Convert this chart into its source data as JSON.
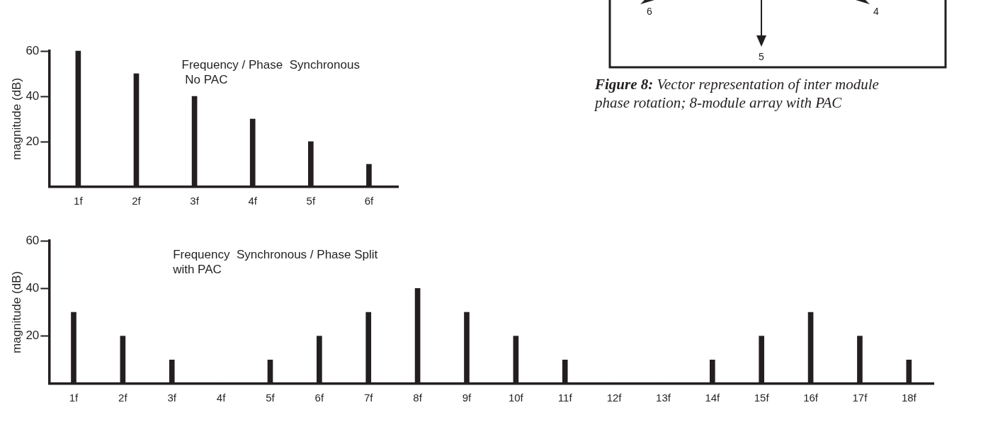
{
  "chart_data": [
    {
      "type": "bar",
      "ylabel": "magnitude (dB)",
      "annotations": [
        "Frequency / Phase  Synchronous",
        " No PAC"
      ],
      "categories": [
        "1f",
        "2f",
        "3f",
        "4f",
        "5f",
        "6f"
      ],
      "series": [
        {
          "color": "#231f20",
          "values": [
            60,
            50,
            40,
            30,
            20,
            10
          ]
        }
      ],
      "ylim": [
        0,
        60
      ],
      "yticks": [
        20,
        40,
        60
      ],
      "grid": false,
      "legend": false
    },
    {
      "type": "bar",
      "ylabel": "magnitude (dB)",
      "annotations": [
        "Frequency  Synchronous / Phase Split",
        "with PAC"
      ],
      "categories": [
        "1f",
        "2f",
        "3f",
        "4f",
        "5f",
        "6f",
        "7f",
        "8f",
        "9f",
        "10f",
        "11f",
        "12f",
        "13f",
        "14f",
        "15f",
        "16f",
        "17f",
        "18f"
      ],
      "series": [
        {
          "color": "#231f20",
          "values": [
            30,
            20,
            10,
            0,
            10,
            20,
            30,
            40,
            30,
            20,
            10,
            0,
            0,
            10,
            20,
            30,
            20,
            10
          ]
        }
      ],
      "ylim": [
        0,
        60
      ],
      "yticks": [
        20,
        40,
        60
      ],
      "grid": false,
      "legend": false
    },
    {
      "type": "other",
      "annotations": [
        "6",
        "5",
        "4",
        "Figure 8:",
        " Vector representation of inter module",
        "phase rotation; 8-module array with PAC"
      ]
    }
  ]
}
